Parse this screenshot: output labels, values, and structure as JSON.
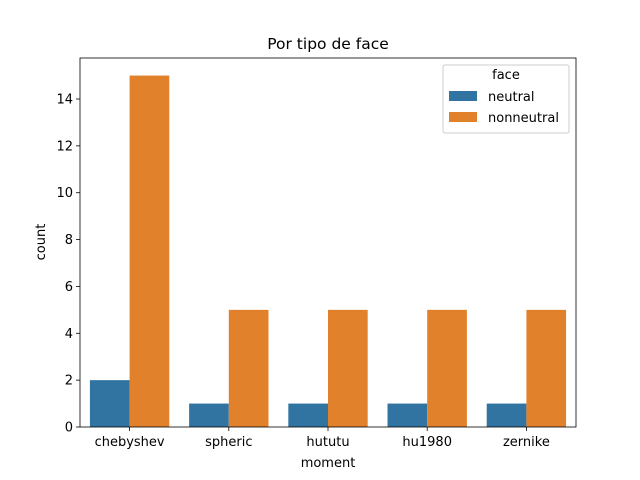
{
  "chart_data": {
    "type": "bar",
    "title": "Por tipo de face",
    "xlabel": "moment",
    "ylabel": "count",
    "categories": [
      "chebyshev",
      "spheric",
      "hututu",
      "hu1980",
      "zernike"
    ],
    "series": [
      {
        "name": "neutral",
        "color": "#3274a1",
        "values": [
          2,
          1,
          1,
          1,
          1
        ]
      },
      {
        "name": "nonneutral",
        "color": "#e1812c",
        "values": [
          15,
          5,
          5,
          5,
          5
        ]
      }
    ],
    "ylim": [
      0,
      15.75
    ],
    "yticks": [
      0,
      2,
      4,
      6,
      8,
      10,
      12,
      14
    ],
    "grid": false,
    "legend": {
      "title": "face",
      "placement": "top-right"
    }
  }
}
